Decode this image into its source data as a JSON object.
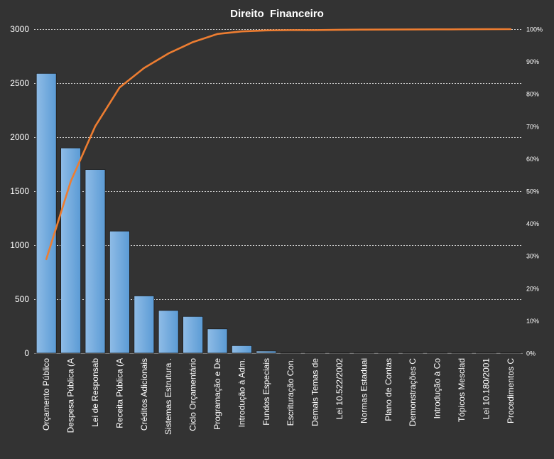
{
  "chart_data": {
    "type": "bar",
    "title": "Direito  Financeiro",
    "categories": [
      "Orçamento Público",
      "Despesa Pública (A",
      "Lei de Responsab",
      "Receita Pública (A",
      "Créditos Adicionais",
      "Sistemas Estrutura .",
      "Ciclo Orçamentário",
      "Programação e De",
      "Introdução  à Adm.",
      "Fundos Especiais",
      "Escrituração Con.",
      "Demais Temas de",
      "Lei 10.522/2002",
      "Normas Estaduai",
      "Plano de Contas",
      "Demonstrações C",
      "Introdução  à Co",
      "Tópicos Mesclad",
      "Lei 10.180/2001",
      "Procedimentos  C"
    ],
    "series": [
      {
        "type": "bar",
        "values": [
          2590,
          1900,
          1700,
          1130,
          530,
          395,
          340,
          225,
          70,
          20,
          5,
          4,
          3,
          2,
          2,
          1,
          1,
          1,
          1,
          1
        ]
      },
      {
        "type": "line",
        "axis": "right",
        "values": [
          29,
          53,
          70,
          82,
          88,
          92.5,
          96,
          98.5,
          99.3,
          99.6,
          99.7,
          99.7,
          99.8,
          99.85,
          99.88,
          99.9,
          99.92,
          99.95,
          99.98,
          100
        ]
      }
    ],
    "y_left": {
      "ylim": [
        0,
        3000
      ],
      "ticks": [
        "0",
        "500",
        "1000",
        "1500",
        "2000",
        "2500",
        "3000"
      ]
    },
    "y_right": {
      "ylim": [
        0,
        100
      ],
      "ticks": [
        "0%",
        "10%",
        "20%",
        "30%",
        "40%",
        "50%",
        "60%",
        "70%",
        "80%",
        "90%",
        "100%"
      ]
    },
    "grid": true,
    "legend": "none",
    "colors": {
      "background": "#333333",
      "bar_fill": "#5B9BD5",
      "bar_fill_light": "#8FBCE6",
      "bar_stroke": "#1F1F1F",
      "line": "#ED7D31",
      "grid": "#CCCCCC",
      "text": "#FFFFFF"
    }
  }
}
